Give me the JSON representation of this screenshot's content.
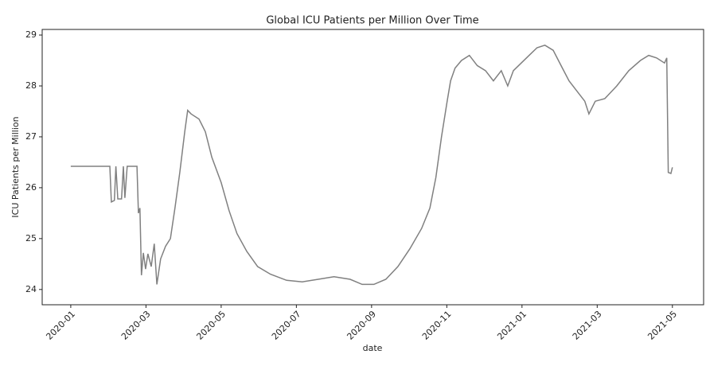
{
  "chart_data": {
    "type": "line",
    "title": "Global ICU Patients per Million Over Time",
    "x_label": "date",
    "y_label": "ICU Patients per Million",
    "x": [
      0,
      1.04,
      1.08,
      1.16,
      1.2,
      1.25,
      1.35,
      1.4,
      1.44,
      1.5,
      1.76,
      1.8,
      1.84,
      1.88,
      1.93,
      1.99,
      2.05,
      2.14,
      2.22,
      2.29,
      2.39,
      2.52,
      2.65,
      2.77,
      2.9,
      3.03,
      3.11,
      3.2,
      3.41,
      3.58,
      3.75,
      4.0,
      4.21,
      4.42,
      4.68,
      4.97,
      5.31,
      5.74,
      6.16,
      6.58,
      7.0,
      7.43,
      7.75,
      8.06,
      8.38,
      8.7,
      9.02,
      9.33,
      9.55,
      9.71,
      9.86,
      10.01,
      10.1,
      10.22,
      10.39,
      10.6,
      10.81,
      11.03,
      11.24,
      11.45,
      11.62,
      11.77,
      11.98,
      12.19,
      12.4,
      12.61,
      12.83,
      13.04,
      13.25,
      13.46,
      13.67,
      13.78,
      13.95,
      14.2,
      14.52,
      14.84,
      15.15,
      15.37,
      15.58,
      15.79,
      15.85,
      15.89,
      15.96,
      16.0
    ],
    "series": [
      {
        "name": "ICU Patients per Million",
        "color": "#808080",
        "values": [
          26.42,
          26.42,
          25.72,
          25.75,
          26.42,
          25.78,
          25.78,
          26.42,
          25.8,
          26.42,
          26.42,
          25.5,
          25.6,
          24.28,
          24.72,
          24.4,
          24.7,
          24.45,
          24.9,
          24.1,
          24.6,
          24.85,
          25.0,
          25.6,
          26.3,
          27.1,
          27.52,
          27.45,
          27.35,
          27.1,
          26.6,
          26.1,
          25.55,
          25.1,
          24.75,
          24.45,
          24.3,
          24.18,
          24.15,
          24.2,
          24.25,
          24.2,
          24.1,
          24.1,
          24.2,
          24.45,
          24.8,
          25.2,
          25.6,
          26.2,
          27.0,
          27.7,
          28.1,
          28.35,
          28.5,
          28.6,
          28.4,
          28.3,
          28.1,
          28.3,
          28.0,
          28.3,
          28.45,
          28.6,
          28.75,
          28.8,
          28.7,
          28.4,
          28.1,
          27.9,
          27.7,
          27.45,
          27.7,
          27.75,
          28.0,
          28.3,
          28.5,
          28.6,
          28.55,
          28.45,
          28.55,
          26.3,
          26.28,
          26.4
        ]
      }
    ],
    "xlim": [
      -0.76,
      16.83
    ],
    "ylim": [
      23.7,
      29.11
    ],
    "xticks": [
      {
        "value": 0,
        "label": "2020-01"
      },
      {
        "value": 2,
        "label": "2020-03"
      },
      {
        "value": 4,
        "label": "2020-05"
      },
      {
        "value": 6,
        "label": "2020-07"
      },
      {
        "value": 8,
        "label": "2020-09"
      },
      {
        "value": 10,
        "label": "2020-11"
      },
      {
        "value": 12,
        "label": "2021-01"
      },
      {
        "value": 14,
        "label": "2021-03"
      },
      {
        "value": 16,
        "label": "2021-05"
      }
    ],
    "yticks": [
      24,
      25,
      26,
      27,
      28,
      29
    ],
    "grid": false
  }
}
